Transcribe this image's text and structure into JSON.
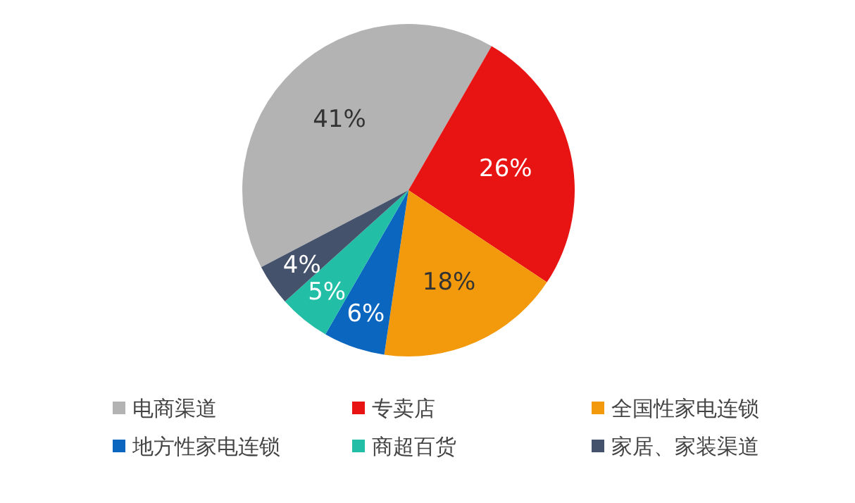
{
  "chart_data": {
    "type": "pie",
    "categories": [
      "电商渠道",
      "专卖店",
      "全国性家电连锁",
      "地方性家电连锁",
      "商超百货",
      "家居、家装渠道"
    ],
    "values": [
      41,
      26,
      18,
      6,
      5,
      4
    ],
    "colors": [
      "#b3b3b3",
      "#e81313",
      "#f39a0c",
      "#0a66be",
      "#22bfa6",
      "#44526c"
    ],
    "value_labels": [
      "41%",
      "26%",
      "18%",
      "6%",
      "5%",
      "4%"
    ],
    "legend": "bottom"
  }
}
